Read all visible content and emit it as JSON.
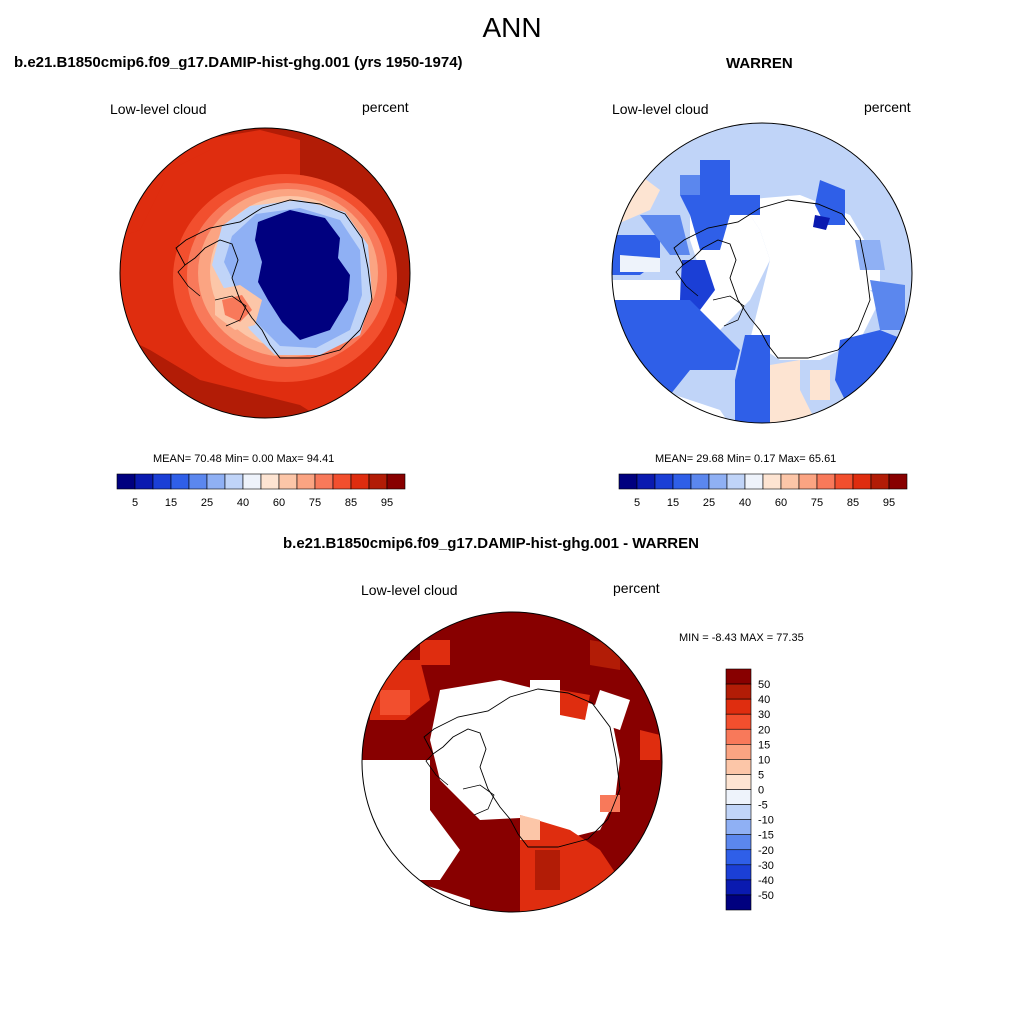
{
  "title": "ANN",
  "panels": [
    {
      "title": "b.e21.B1850cmip6.f09_g17.DAMIP-hist-ghg.001 (yrs 1950-1974)",
      "left_label": "Low-level cloud",
      "right_label": "percent",
      "stats": "MEAN=  70.48  Min=   0.00  Max=  94.41"
    },
    {
      "title": "WARREN",
      "left_label": "Low-level cloud",
      "right_label": "percent",
      "stats": "MEAN=  29.68  Min=   0.17  Max=  65.61"
    },
    {
      "title": "b.e21.B1850cmip6.f09_g17.DAMIP-hist-ghg.001 - WARREN",
      "left_label": "Low-level cloud",
      "right_label": "percent",
      "stats": "MIN =  -8.43 MAX =  77.35"
    }
  ],
  "colorbar_abs": {
    "colors": [
      "#00007f",
      "#0a1ab0",
      "#1b3fd6",
      "#2f5fe8",
      "#5b87ee",
      "#8fb0f4",
      "#c0d4f8",
      "#eef3fb",
      "#fde4d2",
      "#fcc6a8",
      "#fba482",
      "#f8795a",
      "#f24f2e",
      "#df2d0f",
      "#b21c06",
      "#880000"
    ],
    "labels": [
      "5",
      "15",
      "25",
      "40",
      "60",
      "75",
      "85",
      "95"
    ]
  },
  "colorbar_diff": {
    "colors": [
      "#880000",
      "#b21c06",
      "#df2d0f",
      "#f24f2e",
      "#f8795a",
      "#fba482",
      "#fcc6a8",
      "#fde4d2",
      "#eef3fb",
      "#c0d4f8",
      "#8fb0f4",
      "#5b87ee",
      "#2f5fe8",
      "#1b3fd6",
      "#0a1ab0",
      "#00007f"
    ],
    "labels": [
      "50",
      "40",
      "30",
      "20",
      "15",
      "10",
      "5",
      "0",
      "-5",
      "-10",
      "-15",
      "-20",
      "-30",
      "-40",
      "-50"
    ]
  }
}
